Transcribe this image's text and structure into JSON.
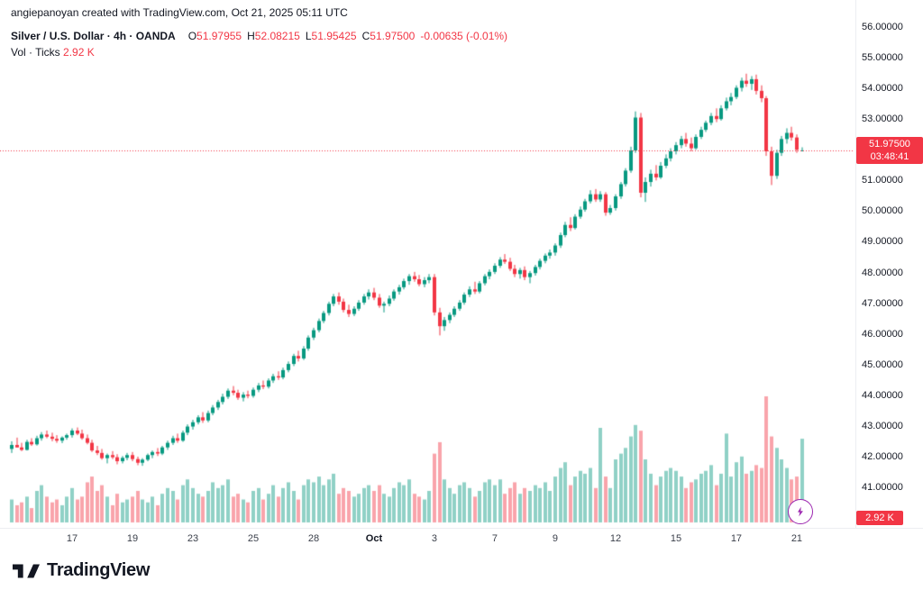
{
  "header": {
    "attribution": "angiepanoyan created with TradingView.com, Oct 21, 2025 05:11 UTC"
  },
  "legend": {
    "symbol_title": "Silver / U.S. Dollar · 4h · OANDA",
    "ohlc": {
      "o_label": "O",
      "o": "51.97955",
      "h_label": "H",
      "h": "52.08215",
      "l_label": "L",
      "l": "51.95425",
      "c_label": "C",
      "c": "51.97500",
      "change": "-0.00635 (-0.01%)"
    },
    "volume_label": "Vol · Ticks",
    "volume_value": "2.92 K"
  },
  "price_axis": {
    "ticks": [
      "56.00000",
      "55.00000",
      "54.00000",
      "53.00000",
      "52.00000",
      "51.00000",
      "50.00000",
      "49.00000",
      "48.00000",
      "47.00000",
      "46.00000",
      "45.00000",
      "44.00000",
      "43.00000",
      "42.00000",
      "41.00000"
    ],
    "last_price_label": "51.97500",
    "countdown": "03:48:41",
    "volume_badge": "2.92 K"
  },
  "time_axis": {
    "labels": [
      {
        "text": "17",
        "index": 12,
        "bold": false
      },
      {
        "text": "19",
        "index": 24,
        "bold": false
      },
      {
        "text": "23",
        "index": 36,
        "bold": false
      },
      {
        "text": "25",
        "index": 48,
        "bold": false
      },
      {
        "text": "28",
        "index": 60,
        "bold": false
      },
      {
        "text": "Oct",
        "index": 72,
        "bold": true
      },
      {
        "text": "3",
        "index": 84,
        "bold": false
      },
      {
        "text": "7",
        "index": 96,
        "bold": false
      },
      {
        "text": "9",
        "index": 108,
        "bold": false
      },
      {
        "text": "12",
        "index": 120,
        "bold": false
      },
      {
        "text": "15",
        "index": 132,
        "bold": false
      },
      {
        "text": "17",
        "index": 144,
        "bold": false
      },
      {
        "text": "21",
        "index": 156,
        "bold": false
      }
    ]
  },
  "footer": {
    "brand": "TradingView"
  },
  "colors": {
    "up": "#089981",
    "down": "#f23645",
    "vol_up": "rgba(8,153,129,0.45)",
    "vol_down": "rgba(242,54,69,0.45)",
    "badge": "#f23645",
    "accent_purple": "#9c27b0",
    "text": "#131722"
  },
  "chart_data": {
    "type": "candlestick",
    "title": "Silver / U.S. Dollar",
    "interval": "4h",
    "exchange": "OANDA",
    "volume_units": "Ticks",
    "price_range": [
      41,
      56
    ],
    "volume_max_k": 4.4,
    "last": {
      "open": 51.97955,
      "high": 52.08215,
      "low": 51.95425,
      "close": 51.975,
      "change": -0.00635,
      "change_pct": -0.01,
      "volume_k": 2.92
    },
    "candles_format": [
      "open",
      "high",
      "low",
      "close",
      "volume_k"
    ],
    "candles": [
      [
        42.25,
        42.5,
        42.12,
        42.38,
        0.8
      ],
      [
        42.38,
        42.62,
        42.3,
        42.3,
        0.6
      ],
      [
        42.3,
        42.45,
        42.18,
        42.22,
        0.7
      ],
      [
        42.22,
        42.55,
        42.2,
        42.48,
        0.9
      ],
      [
        42.48,
        42.6,
        42.35,
        42.4,
        0.5
      ],
      [
        42.4,
        42.68,
        42.36,
        42.6,
        1.1
      ],
      [
        42.6,
        42.8,
        42.52,
        42.72,
        1.3
      ],
      [
        42.72,
        42.85,
        42.6,
        42.65,
        0.9
      ],
      [
        42.65,
        42.78,
        42.5,
        42.58,
        0.7
      ],
      [
        42.58,
        42.7,
        42.45,
        42.52,
        0.8
      ],
      [
        42.52,
        42.66,
        42.44,
        42.62,
        0.6
      ],
      [
        42.62,
        42.75,
        42.55,
        42.7,
        0.9
      ],
      [
        42.7,
        42.92,
        42.62,
        42.85,
        1.2
      ],
      [
        42.85,
        42.95,
        42.7,
        42.75,
        0.8
      ],
      [
        42.75,
        42.88,
        42.55,
        42.6,
        0.9
      ],
      [
        42.6,
        42.72,
        42.4,
        42.45,
        1.4
      ],
      [
        42.45,
        42.55,
        42.15,
        42.2,
        1.6
      ],
      [
        42.2,
        42.35,
        42.05,
        42.12,
        1.1
      ],
      [
        42.12,
        42.25,
        41.9,
        41.95,
        1.3
      ],
      [
        41.95,
        42.1,
        41.78,
        42.05,
        0.9
      ],
      [
        42.05,
        42.18,
        41.92,
        41.98,
        0.6
      ],
      [
        41.98,
        42.08,
        41.75,
        41.85,
        1.0
      ],
      [
        41.85,
        42.02,
        41.78,
        41.96,
        0.7
      ],
      [
        41.96,
        42.12,
        41.88,
        42.05,
        0.8
      ],
      [
        42.05,
        42.15,
        41.85,
        41.92,
        0.9
      ],
      [
        41.92,
        42.0,
        41.72,
        41.8,
        1.1
      ],
      [
        41.8,
        41.95,
        41.7,
        41.9,
        0.8
      ],
      [
        41.9,
        42.1,
        41.85,
        42.05,
        0.7
      ],
      [
        42.05,
        42.2,
        41.95,
        42.15,
        0.9
      ],
      [
        42.15,
        42.28,
        42.02,
        42.1,
        0.6
      ],
      [
        42.1,
        42.35,
        42.05,
        42.3,
        1.0
      ],
      [
        42.3,
        42.52,
        42.22,
        42.45,
        1.2
      ],
      [
        42.45,
        42.68,
        42.38,
        42.6,
        1.1
      ],
      [
        42.6,
        42.75,
        42.45,
        42.52,
        0.8
      ],
      [
        42.52,
        42.85,
        42.48,
        42.78,
        1.3
      ],
      [
        42.78,
        43.05,
        42.7,
        42.98,
        1.5
      ],
      [
        42.98,
        43.2,
        42.88,
        43.12,
        1.2
      ],
      [
        43.12,
        43.35,
        43.05,
        43.28,
        1.0
      ],
      [
        43.28,
        43.45,
        43.1,
        43.18,
        0.9
      ],
      [
        43.18,
        43.5,
        43.12,
        43.42,
        1.1
      ],
      [
        43.42,
        43.68,
        43.35,
        43.6,
        1.4
      ],
      [
        43.6,
        43.85,
        43.52,
        43.78,
        1.2
      ],
      [
        43.78,
        44.05,
        43.7,
        43.95,
        1.3
      ],
      [
        43.95,
        44.22,
        43.88,
        44.15,
        1.5
      ],
      [
        44.15,
        44.3,
        44.0,
        44.08,
        0.9
      ],
      [
        44.08,
        44.18,
        43.85,
        43.92,
        1.0
      ],
      [
        43.92,
        44.1,
        43.8,
        44.02,
        0.8
      ],
      [
        44.02,
        44.15,
        43.9,
        43.98,
        0.7
      ],
      [
        43.98,
        44.25,
        43.92,
        44.18,
        1.1
      ],
      [
        44.18,
        44.4,
        44.1,
        44.32,
        1.2
      ],
      [
        44.32,
        44.48,
        44.2,
        44.28,
        0.8
      ],
      [
        44.28,
        44.55,
        44.22,
        44.48,
        1.0
      ],
      [
        44.48,
        44.7,
        44.4,
        44.62,
        1.3
      ],
      [
        44.62,
        44.78,
        44.5,
        44.58,
        0.9
      ],
      [
        44.58,
        44.9,
        44.52,
        44.82,
        1.2
      ],
      [
        44.82,
        45.1,
        44.75,
        45.02,
        1.4
      ],
      [
        45.02,
        45.35,
        44.95,
        45.28,
        1.1
      ],
      [
        45.28,
        45.45,
        45.1,
        45.2,
        0.8
      ],
      [
        45.2,
        45.6,
        45.15,
        45.52,
        1.3
      ],
      [
        45.52,
        45.95,
        45.45,
        45.88,
        1.5
      ],
      [
        45.88,
        46.2,
        45.8,
        46.12,
        1.4
      ],
      [
        46.12,
        46.5,
        46.05,
        46.42,
        1.6
      ],
      [
        46.42,
        46.75,
        46.35,
        46.68,
        1.3
      ],
      [
        46.68,
        47.05,
        46.6,
        46.98,
        1.5
      ],
      [
        46.98,
        47.3,
        46.9,
        47.22,
        1.7
      ],
      [
        47.22,
        47.35,
        46.95,
        47.05,
        1.0
      ],
      [
        47.05,
        47.15,
        46.7,
        46.78,
        1.2
      ],
      [
        46.78,
        46.95,
        46.55,
        46.65,
        1.1
      ],
      [
        46.65,
        46.9,
        46.58,
        46.82,
        0.9
      ],
      [
        46.82,
        47.1,
        46.75,
        47.02,
        1.0
      ],
      [
        47.02,
        47.3,
        46.95,
        47.22,
        1.2
      ],
      [
        47.22,
        47.45,
        47.12,
        47.35,
        1.3
      ],
      [
        47.35,
        47.5,
        47.1,
        47.18,
        1.1
      ],
      [
        47.18,
        47.3,
        46.85,
        46.92,
        1.3
      ],
      [
        46.92,
        47.05,
        46.7,
        46.98,
        1.0
      ],
      [
        46.98,
        47.25,
        46.9,
        47.15,
        0.9
      ],
      [
        47.15,
        47.45,
        47.08,
        47.38,
        1.2
      ],
      [
        47.38,
        47.6,
        47.28,
        47.52,
        1.4
      ],
      [
        47.52,
        47.8,
        47.45,
        47.72,
        1.3
      ],
      [
        47.72,
        47.95,
        47.6,
        47.88,
        1.5
      ],
      [
        47.88,
        48.02,
        47.7,
        47.78,
        1.0
      ],
      [
        47.78,
        47.92,
        47.55,
        47.62,
        0.9
      ],
      [
        47.62,
        47.85,
        47.52,
        47.75,
        0.8
      ],
      [
        47.75,
        47.95,
        47.65,
        47.85,
        1.1
      ],
      [
        47.85,
        47.95,
        46.6,
        46.7,
        2.4
      ],
      [
        46.7,
        46.85,
        45.95,
        46.25,
        2.8
      ],
      [
        46.25,
        46.55,
        46.1,
        46.45,
        1.5
      ],
      [
        46.45,
        46.7,
        46.35,
        46.62,
        1.2
      ],
      [
        46.62,
        46.9,
        46.55,
        46.82,
        1.0
      ],
      [
        46.82,
        47.1,
        46.75,
        47.02,
        1.3
      ],
      [
        47.02,
        47.35,
        46.95,
        47.28,
        1.4
      ],
      [
        47.28,
        47.55,
        47.2,
        47.45,
        1.2
      ],
      [
        47.45,
        47.7,
        47.3,
        47.38,
        0.9
      ],
      [
        47.38,
        47.72,
        47.32,
        47.65,
        1.1
      ],
      [
        47.65,
        47.95,
        47.58,
        47.88,
        1.4
      ],
      [
        47.88,
        48.1,
        47.78,
        48.02,
        1.5
      ],
      [
        48.02,
        48.3,
        47.95,
        48.22,
        1.3
      ],
      [
        48.22,
        48.5,
        48.15,
        48.42,
        1.5
      ],
      [
        48.42,
        48.6,
        48.28,
        48.35,
        1.0
      ],
      [
        48.35,
        48.48,
        48.05,
        48.12,
        1.2
      ],
      [
        48.12,
        48.25,
        47.85,
        47.95,
        1.4
      ],
      [
        47.95,
        48.15,
        47.8,
        48.08,
        1.0
      ],
      [
        48.08,
        48.2,
        47.75,
        47.85,
        1.2
      ],
      [
        47.85,
        48.05,
        47.65,
        47.98,
        1.1
      ],
      [
        47.98,
        48.25,
        47.9,
        48.18,
        1.3
      ],
      [
        48.18,
        48.45,
        48.1,
        48.38,
        1.2
      ],
      [
        48.38,
        48.62,
        48.3,
        48.55,
        1.4
      ],
      [
        48.55,
        48.75,
        48.45,
        48.65,
        1.1
      ],
      [
        48.65,
        48.95,
        48.55,
        48.88,
        1.6
      ],
      [
        48.88,
        49.3,
        48.8,
        49.22,
        1.9
      ],
      [
        49.22,
        49.65,
        49.15,
        49.55,
        2.1
      ],
      [
        49.55,
        49.8,
        49.35,
        49.45,
        1.3
      ],
      [
        49.45,
        49.9,
        49.4,
        49.82,
        1.6
      ],
      [
        49.82,
        50.15,
        49.75,
        50.05,
        1.8
      ],
      [
        50.05,
        50.4,
        49.98,
        50.32,
        1.7
      ],
      [
        50.32,
        50.68,
        50.25,
        50.55,
        1.9
      ],
      [
        50.55,
        50.72,
        50.3,
        50.38,
        1.2
      ],
      [
        50.38,
        50.65,
        50.3,
        50.55,
        3.3
      ],
      [
        50.55,
        50.62,
        49.85,
        49.95,
        1.6
      ],
      [
        49.95,
        50.2,
        49.88,
        50.1,
        1.2
      ],
      [
        50.1,
        50.55,
        50.02,
        50.48,
        2.2
      ],
      [
        50.48,
        50.95,
        50.4,
        50.88,
        2.4
      ],
      [
        50.88,
        51.4,
        50.8,
        51.32,
        2.6
      ],
      [
        51.32,
        52.1,
        51.25,
        51.98,
        3.0
      ],
      [
        51.98,
        53.25,
        51.9,
        53.05,
        3.4
      ],
      [
        53.05,
        53.2,
        50.45,
        50.6,
        3.2
      ],
      [
        50.6,
        51.1,
        50.3,
        50.95,
        2.2
      ],
      [
        50.95,
        51.35,
        50.8,
        51.22,
        1.7
      ],
      [
        51.22,
        51.5,
        51.0,
        51.1,
        1.3
      ],
      [
        51.1,
        51.6,
        51.05,
        51.48,
        1.6
      ],
      [
        51.48,
        51.85,
        51.4,
        51.72,
        1.8
      ],
      [
        51.72,
        52.05,
        51.62,
        51.95,
        1.9
      ],
      [
        51.95,
        52.25,
        51.85,
        52.15,
        1.8
      ],
      [
        52.15,
        52.45,
        52.05,
        52.35,
        1.6
      ],
      [
        52.35,
        52.55,
        52.1,
        52.2,
        1.2
      ],
      [
        52.2,
        52.4,
        51.95,
        52.05,
        1.4
      ],
      [
        52.05,
        52.5,
        52.0,
        52.42,
        1.5
      ],
      [
        52.42,
        52.75,
        52.35,
        52.65,
        1.7
      ],
      [
        52.65,
        52.95,
        52.58,
        52.88,
        1.8
      ],
      [
        52.88,
        53.2,
        52.8,
        53.1,
        2.0
      ],
      [
        53.1,
        53.35,
        52.9,
        53.0,
        1.3
      ],
      [
        53.0,
        53.45,
        52.95,
        53.35,
        1.7
      ],
      [
        53.35,
        53.7,
        53.28,
        53.58,
        3.1
      ],
      [
        53.58,
        53.85,
        53.45,
        53.72,
        1.6
      ],
      [
        53.72,
        54.1,
        53.65,
        54.02,
        2.1
      ],
      [
        54.02,
        54.35,
        53.9,
        54.25,
        2.3
      ],
      [
        54.25,
        54.48,
        54.05,
        54.15,
        1.7
      ],
      [
        54.15,
        54.4,
        53.95,
        54.3,
        1.8
      ],
      [
        54.3,
        54.45,
        53.8,
        53.92,
        2.0
      ],
      [
        53.92,
        54.1,
        53.55,
        53.68,
        1.9
      ],
      [
        53.68,
        53.75,
        51.8,
        51.95,
        4.4
      ],
      [
        51.95,
        52.1,
        50.85,
        51.15,
        3.0
      ],
      [
        51.15,
        52.0,
        51.05,
        51.9,
        2.6
      ],
      [
        51.9,
        52.45,
        51.8,
        52.35,
        2.2
      ],
      [
        52.35,
        52.7,
        52.2,
        52.55,
        1.9
      ],
      [
        52.55,
        52.75,
        52.3,
        52.4,
        1.5
      ],
      [
        52.4,
        52.5,
        51.9,
        52.0,
        1.6
      ],
      [
        51.98,
        52.08,
        51.95,
        51.98,
        2.92
      ]
    ]
  }
}
